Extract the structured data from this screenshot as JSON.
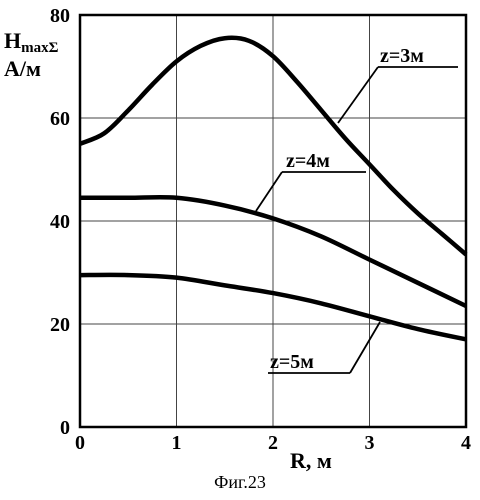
{
  "chart_data": {
    "type": "line",
    "ylabel_main": "H",
    "ylabel_sub": "maxΣ",
    "ylabel_units": "А/м",
    "xlabel": "R,  м",
    "xlim": [
      0,
      4
    ],
    "ylim": [
      0,
      80
    ],
    "xticks": [
      "0",
      "1",
      "2",
      "3",
      "4"
    ],
    "yticks": [
      "0",
      "20",
      "40",
      "60",
      "80"
    ],
    "grid": true,
    "series": [
      {
        "name": "z=3м",
        "x": [
          0,
          0.25,
          0.5,
          0.75,
          1.0,
          1.25,
          1.5,
          1.75,
          2.0,
          2.25,
          2.5,
          2.75,
          3.0,
          3.25,
          3.5,
          3.75,
          4.0
        ],
        "y": [
          55,
          57,
          61.5,
          66.5,
          71,
          74,
          75.5,
          75,
          72,
          67,
          61.5,
          56,
          51,
          46,
          41.5,
          37.5,
          33.5
        ]
      },
      {
        "name": "z=4м",
        "x": [
          0,
          0.5,
          1.0,
          1.5,
          2.0,
          2.5,
          3.0,
          3.5,
          4.0
        ],
        "y": [
          44.5,
          44.5,
          44.5,
          43,
          40.5,
          37,
          32.5,
          28,
          23.5
        ]
      },
      {
        "name": "z=5м",
        "x": [
          0,
          0.5,
          1.0,
          1.5,
          2.0,
          2.5,
          3.0,
          3.5,
          4.0
        ],
        "y": [
          29.5,
          29.5,
          29,
          27.5,
          26,
          24,
          21.5,
          19,
          17
        ]
      }
    ]
  },
  "caption": "Фиг.23"
}
